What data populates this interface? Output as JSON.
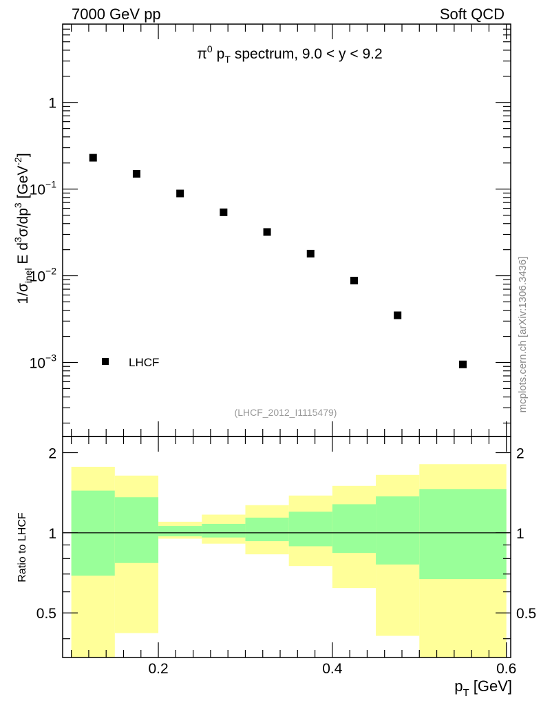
{
  "header": {
    "left": "7000 GeV pp",
    "right": "Soft QCD"
  },
  "watermark": "mcplots.cern.ch [arXiv:1306.3436]",
  "chart_data": [
    {
      "type": "scatter",
      "title": "π0 pT spectrum, 9.0 < y < 9.2",
      "title_parts": {
        "pi": "π",
        "pi_sup": "0",
        "p": "p",
        "p_sub": "T",
        "rest": "spectrum, 9.0 < y < 9.2"
      },
      "ylabel": "1/σinel E d3σ/dp3 [GeV-2]",
      "ylabel_parts": {
        "a": "1/σ",
        "inel": "inel",
        "b": " E d",
        "cube1": "3",
        "c": "σ/dp",
        "cube2": "3",
        "d": " [GeV",
        "exp": "-2",
        "e": "]"
      },
      "yscale": "log",
      "ylim": [
        0.00014,
        8
      ],
      "xlim": [
        0.09,
        0.605
      ],
      "y_tick_labels": [
        {
          "value": 1,
          "base": "1",
          "exp": ""
        },
        {
          "value": 0.1,
          "base": "10",
          "exp": "−1"
        },
        {
          "value": 0.01,
          "base": "10",
          "exp": "−2"
        },
        {
          "value": 0.001,
          "base": "10",
          "exp": "−3"
        }
      ],
      "series": [
        {
          "name": "LHCF",
          "x": [
            0.125,
            0.175,
            0.225,
            0.275,
            0.325,
            0.375,
            0.425,
            0.475,
            0.55
          ],
          "y": [
            0.23,
            0.15,
            0.089,
            0.054,
            0.032,
            0.018,
            0.0088,
            0.0035,
            0.00095
          ]
        }
      ],
      "legend": {
        "label": "LHCF",
        "placement": "bottom-left"
      },
      "analysis_label": "(LHCF_2012_I1115479)"
    },
    {
      "type": "area",
      "ylabel": "Ratio to LHCF",
      "xlabel": "pT [GeV]",
      "xlabel_parts": {
        "p": "p",
        "sub": "T",
        "unit": " [GeV]"
      },
      "xlim": [
        0.09,
        0.605
      ],
      "ylim": [
        0.34,
        2.3
      ],
      "x_tick_labels": [
        "0.2",
        "0.4",
        "0.6"
      ],
      "x_ticks": [
        0.2,
        0.4,
        0.6
      ],
      "y_tick_labels": [
        "2",
        "1",
        "0.5"
      ],
      "y_ticks": [
        2,
        1,
        0.5
      ],
      "reference_line": 1,
      "bins": [
        {
          "lo": 0.1,
          "hi": 0.15,
          "yellow": [
            0.34,
            1.77
          ],
          "green": [
            0.69,
            1.44
          ]
        },
        {
          "lo": 0.15,
          "hi": 0.2,
          "yellow": [
            0.42,
            1.64
          ],
          "green": [
            0.77,
            1.36
          ]
        },
        {
          "lo": 0.2,
          "hi": 0.25,
          "yellow": [
            0.95,
            1.1
          ],
          "green": [
            0.97,
            1.06
          ]
        },
        {
          "lo": 0.25,
          "hi": 0.3,
          "yellow": [
            0.91,
            1.17
          ],
          "green": [
            0.96,
            1.08
          ]
        },
        {
          "lo": 0.3,
          "hi": 0.35,
          "yellow": [
            0.83,
            1.27
          ],
          "green": [
            0.93,
            1.14
          ]
        },
        {
          "lo": 0.35,
          "hi": 0.4,
          "yellow": [
            0.75,
            1.38
          ],
          "green": [
            0.89,
            1.2
          ]
        },
        {
          "lo": 0.4,
          "hi": 0.45,
          "yellow": [
            0.62,
            1.5
          ],
          "green": [
            0.84,
            1.28
          ]
        },
        {
          "lo": 0.45,
          "hi": 0.5,
          "yellow": [
            0.41,
            1.65
          ],
          "green": [
            0.76,
            1.37
          ]
        },
        {
          "lo": 0.5,
          "hi": 0.6,
          "yellow": [
            0.34,
            1.81
          ],
          "green": [
            0.67,
            1.46
          ]
        }
      ],
      "colors": {
        "yellow": "#ffff99",
        "green": "#99ff99",
        "marker": "#000000"
      }
    }
  ]
}
